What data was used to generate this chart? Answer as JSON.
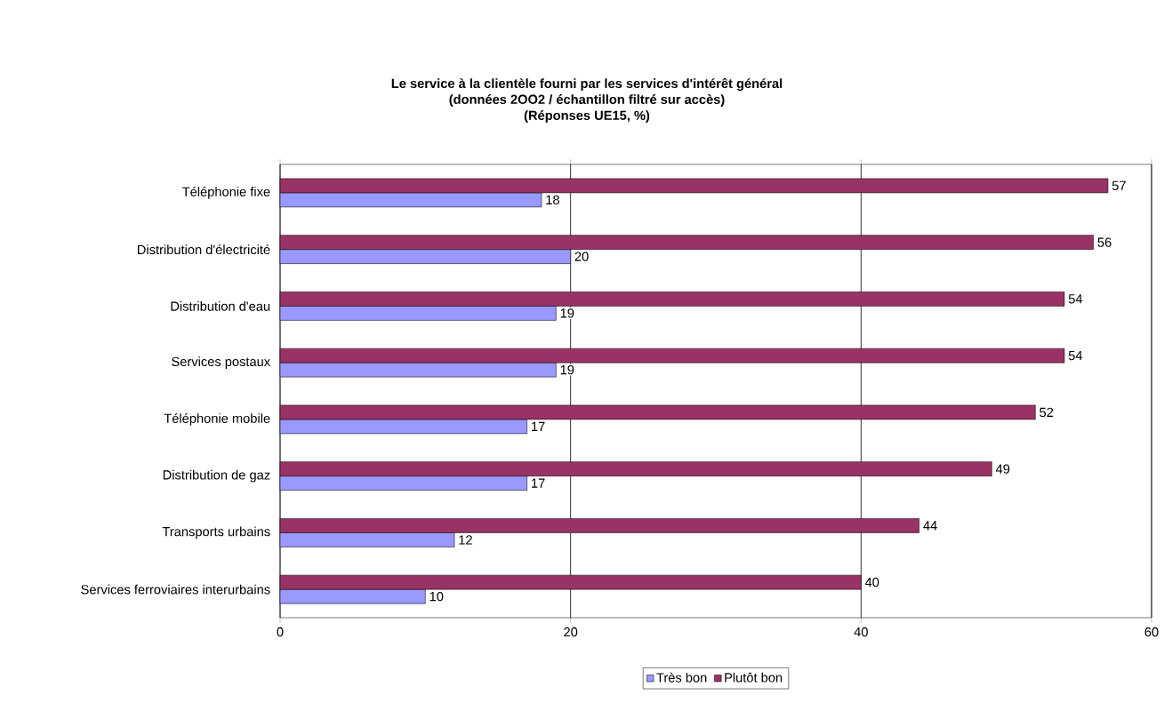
{
  "chart_data": {
    "type": "bar",
    "orientation": "horizontal",
    "title": "Le service à la clientèle fourni par les services d'intérêt général",
    "subtitle": "(données 2OO2 / échantillon filtré sur accès)",
    "annotations": [
      "(Réponses UE15, %)"
    ],
    "categories": [
      "Téléphonie fixe",
      "Distribution d'électricité",
      "Distribution d'eau",
      "Services postaux",
      "Téléphonie mobile",
      "Distribution de gaz",
      "Transports urbains",
      "Services ferroviaires interurbains"
    ],
    "series": [
      {
        "name": "Très bon",
        "color": "#9999ff",
        "values": [
          18,
          20,
          19,
          19,
          17,
          17,
          12,
          10
        ]
      },
      {
        "name": "Plutôt bon",
        "color": "#993366",
        "values": [
          57,
          56,
          54,
          54,
          52,
          49,
          44,
          40
        ]
      }
    ],
    "xlim": [
      0,
      60
    ],
    "xticks": [
      0,
      20,
      40,
      60
    ],
    "grid": "x",
    "legend": "bottom",
    "data_labels": true
  }
}
